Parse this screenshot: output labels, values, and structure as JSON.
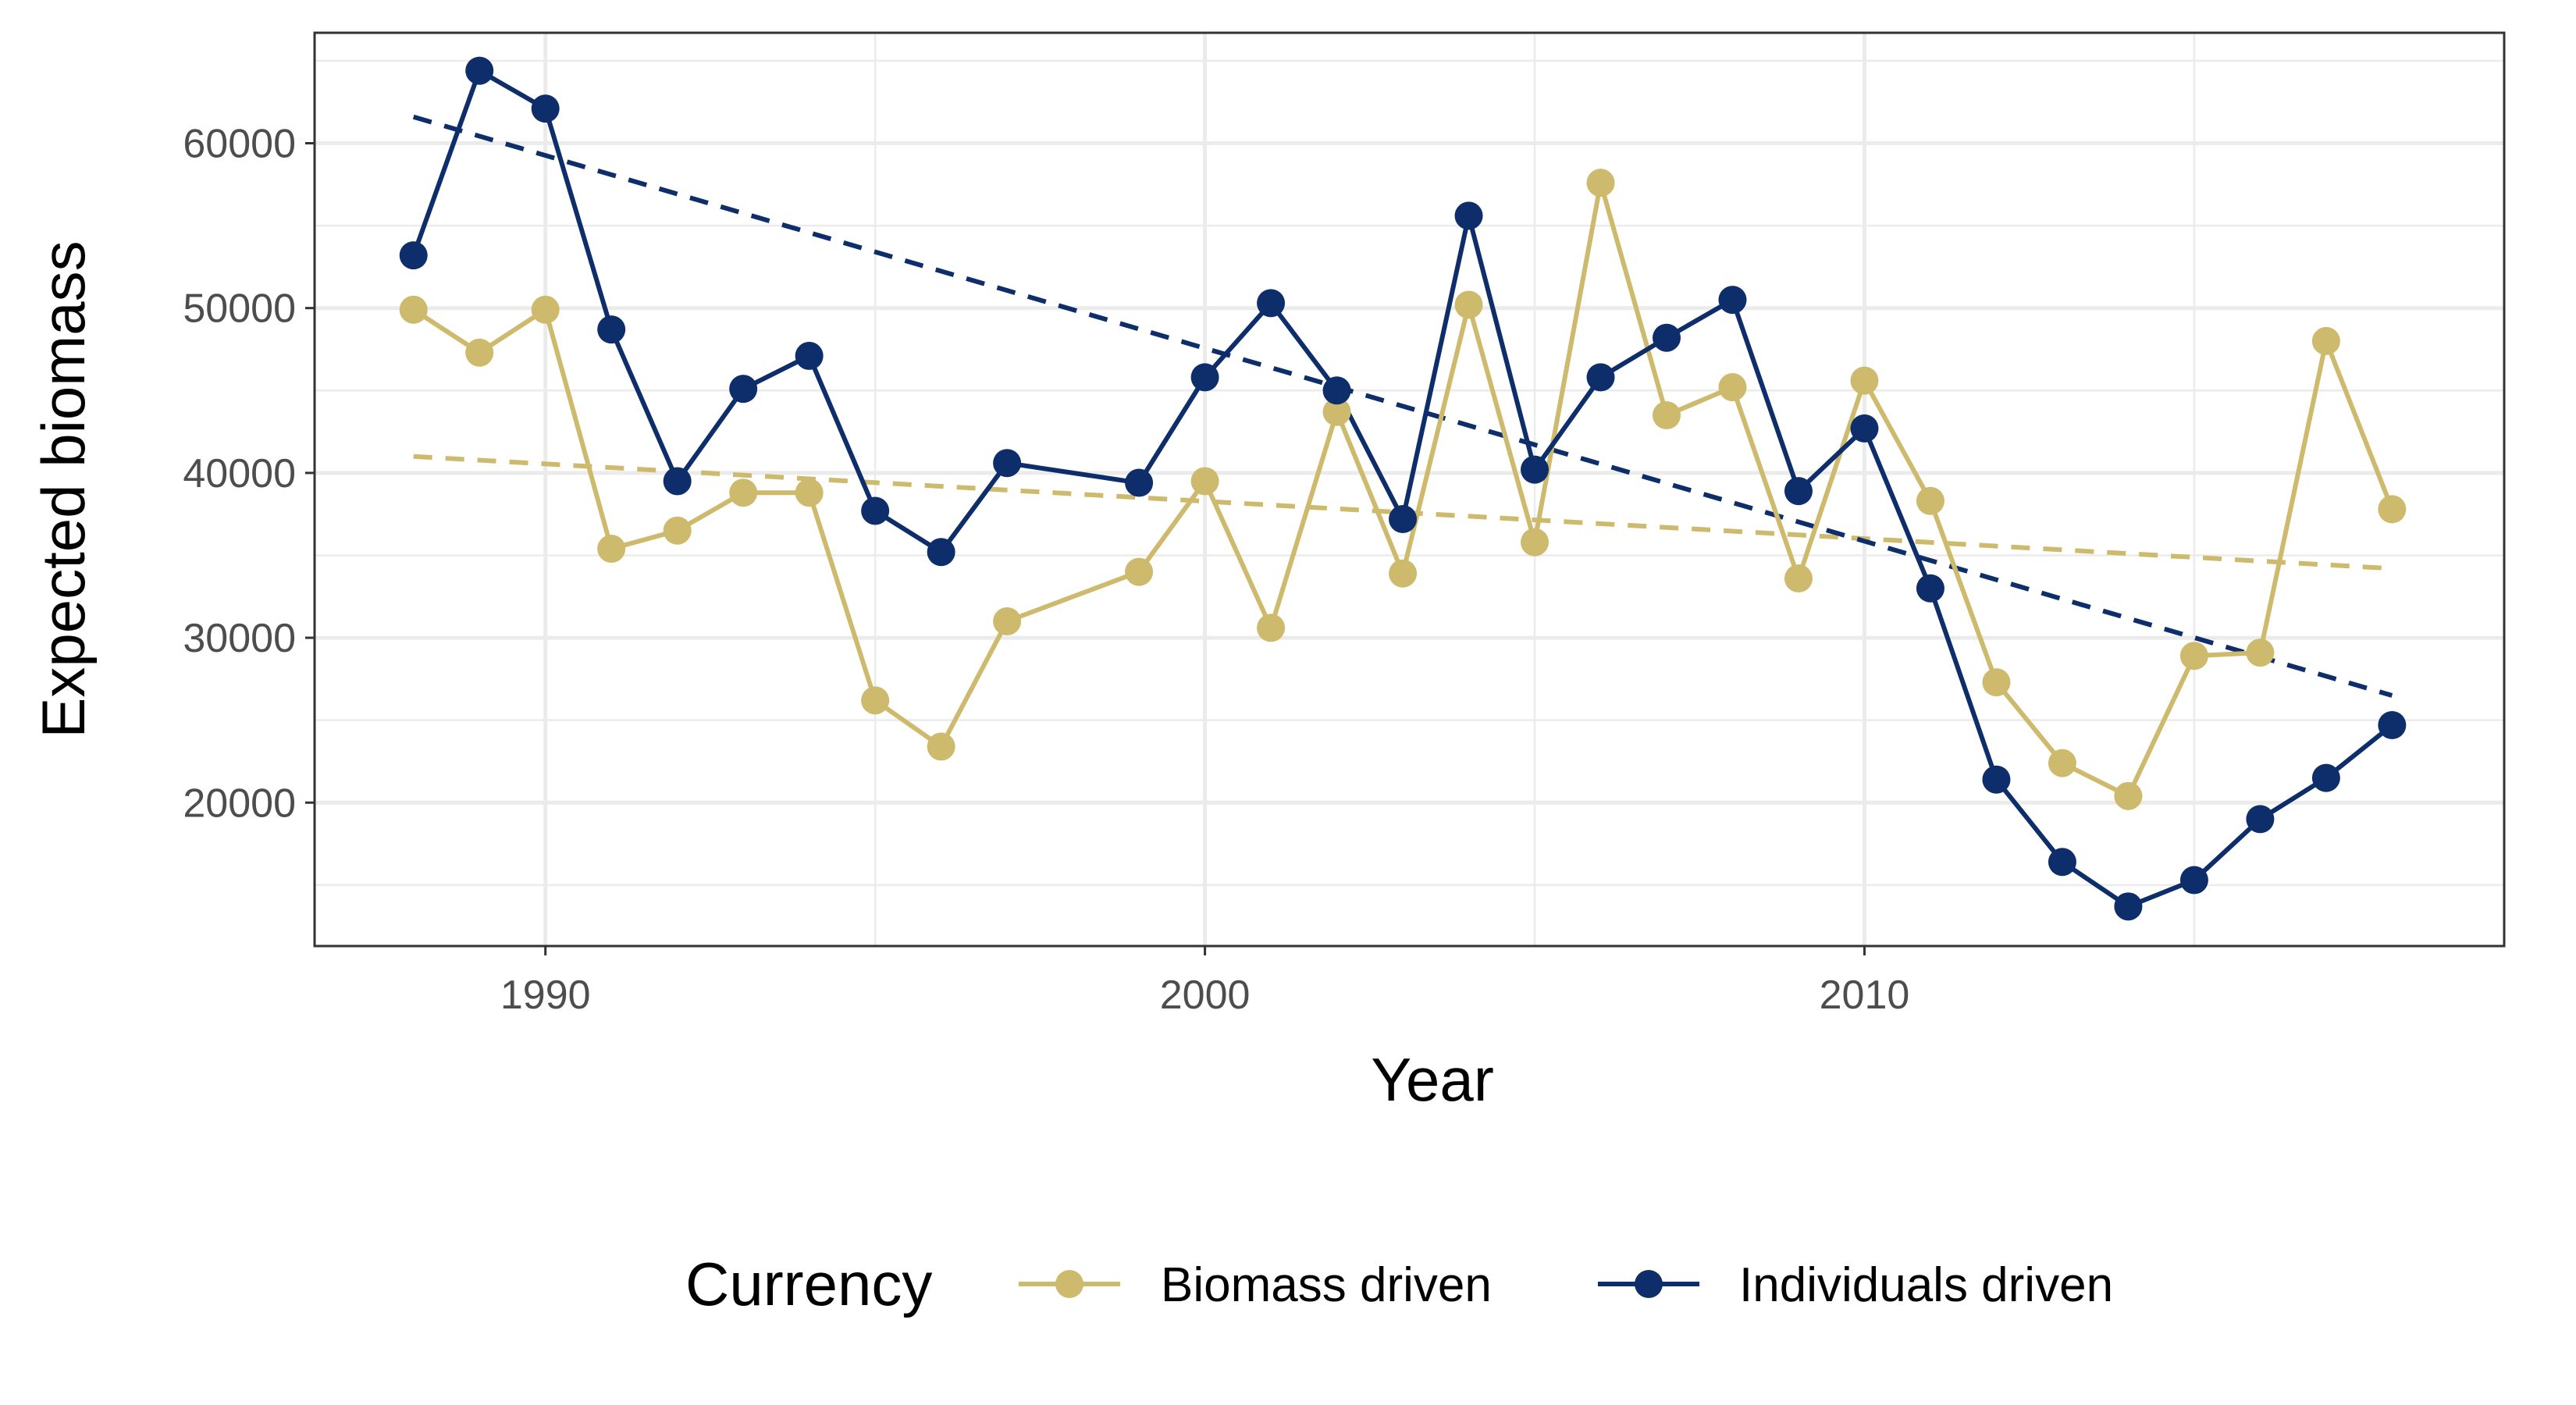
{
  "chart_data": {
    "type": "line",
    "title": "",
    "xlabel": "Year",
    "ylabel": "Expected biomass",
    "xlim": [
      1986.5,
      2019.7
    ],
    "ylim": [
      11300,
      66700
    ],
    "x_ticks": [
      1990,
      2000,
      2010
    ],
    "x_minor_ticks": [
      1995,
      2005,
      2015
    ],
    "y_ticks": [
      20000,
      30000,
      40000,
      50000,
      60000
    ],
    "y_minor_ticks": [
      15000,
      25000,
      35000,
      45000,
      55000,
      65000
    ],
    "x_tick_labels": [
      "1990",
      "2000",
      "2010"
    ],
    "y_tick_labels": [
      "20000",
      "30000",
      "40000",
      "50000",
      "60000"
    ],
    "grid": true,
    "legend": {
      "title": "Currency",
      "position": "bottom"
    },
    "series": [
      {
        "name": "Biomass driven",
        "color": "#cdba6c",
        "points": [
          [
            1988,
            49900
          ],
          [
            1989,
            47300
          ],
          [
            1990,
            49900
          ],
          [
            1991,
            35400
          ],
          [
            1992,
            36500
          ],
          [
            1993,
            38800
          ],
          [
            1994,
            38800
          ],
          [
            1995,
            26200
          ],
          [
            1996,
            23400
          ],
          [
            1997,
            31000
          ],
          [
            1999,
            34000
          ],
          [
            2000,
            39500
          ],
          [
            2001,
            30600
          ],
          [
            2002,
            43700
          ],
          [
            2003,
            33900
          ],
          [
            2004,
            50200
          ],
          [
            2005,
            35800
          ],
          [
            2006,
            57600
          ],
          [
            2007,
            43500
          ],
          [
            2008,
            45200
          ],
          [
            2009,
            33600
          ],
          [
            2010,
            45600
          ],
          [
            2011,
            38300
          ],
          [
            2012,
            27300
          ],
          [
            2013,
            22400
          ],
          [
            2014,
            20400
          ],
          [
            2015,
            28900
          ],
          [
            2016,
            29100
          ],
          [
            2017,
            48000
          ],
          [
            2018,
            37800
          ]
        ],
        "trend": [
          [
            1988,
            41000
          ],
          [
            2018,
            34200
          ]
        ]
      },
      {
        "name": "Individuals driven",
        "color": "#0d2d6b",
        "points": [
          [
            1988,
            53200
          ],
          [
            1989,
            64400
          ],
          [
            1990,
            62100
          ],
          [
            1991,
            48700
          ],
          [
            1992,
            39500
          ],
          [
            1993,
            45100
          ],
          [
            1994,
            47100
          ],
          [
            1995,
            37700
          ],
          [
            1996,
            35200
          ],
          [
            1997,
            40600
          ],
          [
            1999,
            39400
          ],
          [
            2000,
            45800
          ],
          [
            2001,
            50300
          ],
          [
            2002,
            45000
          ],
          [
            2003,
            37200
          ],
          [
            2004,
            55600
          ],
          [
            2005,
            40200
          ],
          [
            2006,
            45800
          ],
          [
            2007,
            48200
          ],
          [
            2008,
            50500
          ],
          [
            2009,
            38900
          ],
          [
            2010,
            42700
          ],
          [
            2011,
            33000
          ],
          [
            2012,
            21400
          ],
          [
            2013,
            16400
          ],
          [
            2014,
            13700
          ],
          [
            2015,
            15300
          ],
          [
            2016,
            19000
          ],
          [
            2017,
            21500
          ],
          [
            2018,
            24700
          ]
        ],
        "trend": [
          [
            1988,
            61600
          ],
          [
            2018,
            26500
          ]
        ]
      }
    ]
  }
}
